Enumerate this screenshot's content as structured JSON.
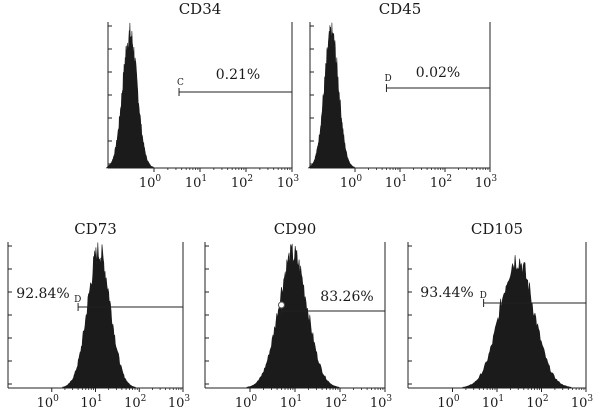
{
  "chart_data": [
    {
      "type": "histogram",
      "title": "CD34",
      "x_scale": "log",
      "xlim": [
        0.1,
        1000
      ],
      "x_ticks": [
        {
          "base": "10",
          "exp": "0"
        },
        {
          "base": "10",
          "exp": "1"
        },
        {
          "base": "10",
          "exp": "2"
        },
        {
          "base": "10",
          "exp": "3"
        }
      ],
      "histogram": {
        "peak": 0.3,
        "spread": 0.16,
        "height": 0.95
      },
      "gate": {
        "letter": "C",
        "start": 3.5,
        "end": 1000,
        "percent": "0.21%"
      }
    },
    {
      "type": "histogram",
      "title": "CD45",
      "x_scale": "log",
      "xlim": [
        0.1,
        1000
      ],
      "x_ticks": [
        {
          "base": "10",
          "exp": "0"
        },
        {
          "base": "10",
          "exp": "1"
        },
        {
          "base": "10",
          "exp": "2"
        },
        {
          "base": "10",
          "exp": "3"
        }
      ],
      "histogram": {
        "peak": 0.3,
        "spread": 0.16,
        "height": 0.95
      },
      "gate": {
        "letter": "D",
        "start": 5,
        "end": 1000,
        "percent": "0.02%"
      }
    },
    {
      "type": "histogram",
      "title": "CD73",
      "x_scale": "log",
      "xlim": [
        0.1,
        1000
      ],
      "x_ticks": [
        {
          "base": "10",
          "exp": "0"
        },
        {
          "base": "10",
          "exp": "1"
        },
        {
          "base": "10",
          "exp": "2"
        },
        {
          "base": "10",
          "exp": "3"
        }
      ],
      "histogram": {
        "peak": 12,
        "spread": 0.26,
        "height": 0.97
      },
      "gate": {
        "letter": "D",
        "start": 4,
        "end": 1000,
        "percent": "92.84%"
      }
    },
    {
      "type": "histogram",
      "title": "CD90",
      "x_scale": "log",
      "xlim": [
        0.1,
        1000
      ],
      "x_ticks": [
        {
          "base": "10",
          "exp": "0"
        },
        {
          "base": "10",
          "exp": "1"
        },
        {
          "base": "10",
          "exp": "2"
        },
        {
          "base": "10",
          "exp": "3"
        }
      ],
      "histogram": {
        "peak": 9,
        "spread": 0.32,
        "height": 0.95
      },
      "gate": {
        "letter": "",
        "start": 5,
        "end": 1000,
        "percent": "83.26%"
      }
    },
    {
      "type": "histogram",
      "title": "CD105",
      "x_scale": "log",
      "xlim": [
        0.1,
        1000
      ],
      "x_ticks": [
        {
          "base": "10",
          "exp": "0"
        },
        {
          "base": "10",
          "exp": "1"
        },
        {
          "base": "10",
          "exp": "2"
        },
        {
          "base": "10",
          "exp": "3"
        }
      ],
      "histogram": {
        "peak": 28,
        "spread": 0.38,
        "height": 0.92
      },
      "gate": {
        "letter": "D",
        "start": 5,
        "end": 1000,
        "percent": "93.44%"
      }
    }
  ]
}
